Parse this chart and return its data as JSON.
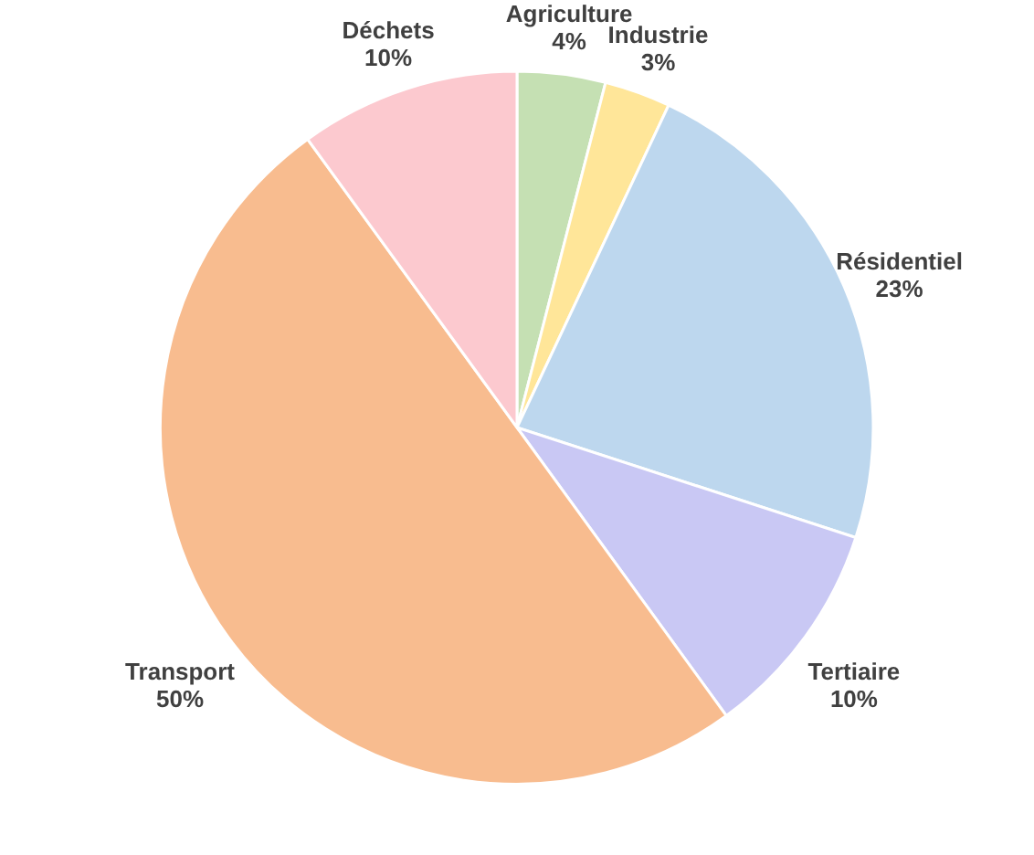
{
  "chart_data": {
    "type": "pie",
    "categories": [
      "Agriculture",
      "Industrie",
      "Résidentiel",
      "Tertiaire",
      "Transport",
      "Déchets"
    ],
    "values": [
      4,
      3,
      23,
      10,
      50,
      10
    ],
    "value_labels": [
      "4%",
      "3%",
      "23%",
      "10%",
      "50%",
      "10%"
    ],
    "colors": [
      "#c5e0b3",
      "#ffe699",
      "#bdd7ee",
      "#c9c8f4",
      "#f8bc8f",
      "#fcc9cf"
    ],
    "legend": false
  }
}
